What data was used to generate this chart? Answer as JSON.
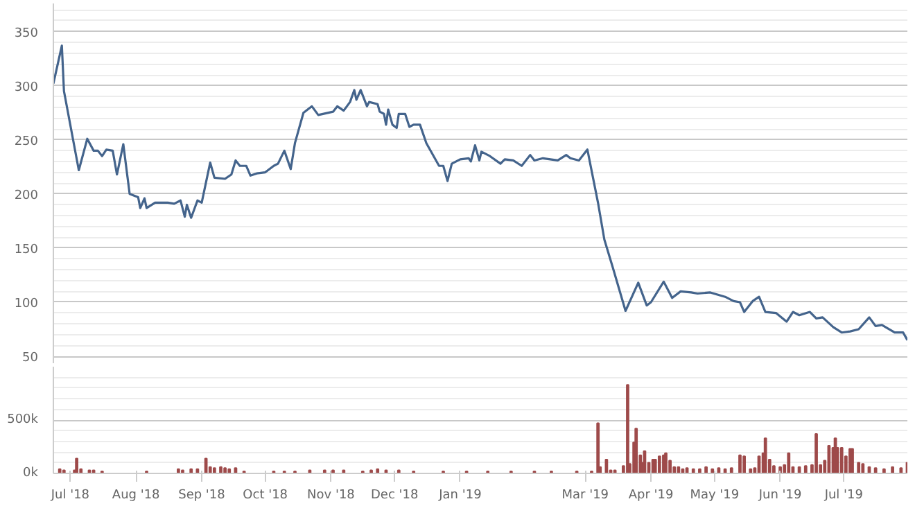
{
  "chart_data": [
    {
      "type": "line",
      "color": "#44648c",
      "grid": "y",
      "tick_labels": "y",
      "xlim": [
        "2018-06-23",
        "2019-07-31"
      ],
      "ylim": [
        43,
        376
      ],
      "yticks": [
        50,
        100,
        150,
        200,
        250,
        300,
        350
      ],
      "x": [
        "2018-06-23",
        "2018-06-27",
        "2018-06-28",
        "2018-07-05",
        "2018-07-09",
        "2018-07-12",
        "2018-07-14",
        "2018-07-16",
        "2018-07-18",
        "2018-07-21",
        "2018-07-23",
        "2018-07-26",
        "2018-07-29",
        "2018-08-02",
        "2018-08-03",
        "2018-08-05",
        "2018-08-06",
        "2018-08-10",
        "2018-08-16",
        "2018-08-19",
        "2018-08-22",
        "2018-08-24",
        "2018-08-25",
        "2018-08-27",
        "2018-08-30",
        "2018-09-01",
        "2018-09-05",
        "2018-09-07",
        "2018-09-12",
        "2018-09-15",
        "2018-09-17",
        "2018-09-19",
        "2018-09-22",
        "2018-09-24",
        "2018-09-27",
        "2018-10-01",
        "2018-10-05",
        "2018-10-07",
        "2018-10-10",
        "2018-10-13",
        "2018-10-15",
        "2018-10-19",
        "2018-10-23",
        "2018-10-26",
        "2018-11-02",
        "2018-11-04",
        "2018-11-07",
        "2018-11-10",
        "2018-11-12",
        "2018-11-13",
        "2018-11-15",
        "2018-11-18",
        "2018-11-19",
        "2018-11-23",
        "2018-11-24",
        "2018-11-26",
        "2018-11-27",
        "2018-11-28",
        "2018-11-30",
        "2018-12-02",
        "2018-12-03",
        "2018-12-06",
        "2018-12-08",
        "2018-12-10",
        "2018-12-13",
        "2018-12-16",
        "2018-12-22",
        "2018-12-24",
        "2018-12-26",
        "2018-12-28",
        "2019-01-01",
        "2019-01-05",
        "2019-01-06",
        "2019-01-08",
        "2019-01-10",
        "2019-01-11",
        "2019-01-15",
        "2019-01-20",
        "2019-01-22",
        "2019-01-26",
        "2019-01-30",
        "2019-02-03",
        "2019-02-05",
        "2019-02-09",
        "2019-02-16",
        "2019-02-20",
        "2019-02-22",
        "2019-02-26",
        "2019-03-02",
        "2019-03-07",
        "2019-03-10",
        "2019-03-14",
        "2019-03-20",
        "2019-03-26",
        "2019-03-30",
        "2019-04-01",
        "2019-04-07",
        "2019-04-11",
        "2019-04-15",
        "2019-04-20",
        "2019-04-23",
        "2019-04-29",
        "2019-05-06",
        "2019-05-10",
        "2019-05-13",
        "2019-05-15",
        "2019-05-19",
        "2019-05-22",
        "2019-05-25",
        "2019-05-30",
        "2019-06-04",
        "2019-06-07",
        "2019-06-10",
        "2019-06-15",
        "2019-06-18",
        "2019-06-21",
        "2019-06-26",
        "2019-06-30",
        "2019-07-04",
        "2019-07-08",
        "2019-07-13",
        "2019-07-16",
        "2019-07-19",
        "2019-07-25",
        "2019-07-29",
        "2019-07-31"
      ],
      "values": [
        302,
        337,
        295,
        222,
        251,
        240,
        240,
        235,
        241,
        240,
        218,
        246,
        200,
        197,
        187,
        196,
        187,
        192,
        192,
        191,
        194,
        179,
        190,
        178,
        194,
        192,
        229,
        215,
        214,
        218,
        231,
        226,
        226,
        217,
        219,
        220,
        226,
        228,
        240,
        223,
        247,
        275,
        281,
        273,
        276,
        281,
        277,
        285,
        296,
        287,
        296,
        281,
        285,
        283,
        276,
        274,
        264,
        278,
        264,
        261,
        274,
        274,
        262,
        264,
        264,
        247,
        226,
        226,
        212,
        228,
        232,
        233,
        230,
        245,
        231,
        239,
        235,
        228,
        232,
        231,
        226,
        236,
        231,
        233,
        231,
        236,
        233,
        231,
        241,
        192,
        158,
        132,
        92,
        118,
        97,
        100,
        119,
        104,
        110,
        109,
        108,
        109,
        105,
        101,
        100,
        91,
        101,
        105,
        91,
        90,
        82,
        91,
        88,
        91,
        85,
        86,
        77,
        72,
        73,
        75,
        86,
        78,
        79,
        72,
        72,
        65
      ]
    },
    {
      "type": "bar",
      "color": "#9e4a4a",
      "grid": "y",
      "xlim": [
        "2018-06-23",
        "2019-07-31"
      ],
      "ylim": [
        0,
        1000000
      ],
      "yticks": [
        {
          "value": 0,
          "label": "0k"
        },
        {
          "value": 500000,
          "label": "500k"
        }
      ],
      "xticks": [
        {
          "value": "2018-07-01",
          "label": "Jul '18"
        },
        {
          "value": "2018-08-01",
          "label": "Aug '18"
        },
        {
          "value": "2018-09-01",
          "label": "Sep '18"
        },
        {
          "value": "2018-10-01",
          "label": "Oct '18"
        },
        {
          "value": "2018-11-01",
          "label": "Nov '18"
        },
        {
          "value": "2018-12-01",
          "label": "Dec '18"
        },
        {
          "value": "2019-01-01",
          "label": "Jan '19"
        },
        {
          "value": "2019-03-01",
          "label": "Mar '19"
        },
        {
          "value": "2019-04-01",
          "label": "Apr '19"
        },
        {
          "value": "2019-05-01",
          "label": "May '19"
        },
        {
          "value": "2019-06-01",
          "label": "Jun '19"
        },
        {
          "value": "2019-07-01",
          "label": "Jul '19"
        }
      ],
      "x": [
        "2018-06-26",
        "2018-06-28",
        "2018-07-03",
        "2018-07-04",
        "2018-07-06",
        "2018-07-10",
        "2018-07-12",
        "2018-07-16",
        "2018-08-06",
        "2018-08-21",
        "2018-08-23",
        "2018-08-27",
        "2018-08-30",
        "2018-09-03",
        "2018-09-05",
        "2018-09-07",
        "2018-09-10",
        "2018-09-12",
        "2018-09-14",
        "2018-09-17",
        "2018-09-21",
        "2018-10-05",
        "2018-10-10",
        "2018-10-15",
        "2018-10-22",
        "2018-10-29",
        "2018-11-02",
        "2018-11-07",
        "2018-11-16",
        "2018-11-20",
        "2018-11-23",
        "2018-11-27",
        "2018-12-03",
        "2018-12-10",
        "2018-12-24",
        "2019-01-04",
        "2019-01-14",
        "2019-01-25",
        "2019-02-05",
        "2019-02-13",
        "2019-02-25",
        "2019-03-04",
        "2019-03-07",
        "2019-03-08",
        "2019-03-11",
        "2019-03-13",
        "2019-03-15",
        "2019-03-19",
        "2019-03-21",
        "2019-03-22",
        "2019-03-24",
        "2019-03-25",
        "2019-03-27",
        "2019-03-28",
        "2019-03-29",
        "2019-03-31",
        "2019-04-02",
        "2019-04-03",
        "2019-04-05",
        "2019-04-07",
        "2019-04-08",
        "2019-04-10",
        "2019-04-12",
        "2019-04-14",
        "2019-04-16",
        "2019-04-18",
        "2019-04-21",
        "2019-04-24",
        "2019-04-27",
        "2019-04-30",
        "2019-05-03",
        "2019-05-06",
        "2019-05-09",
        "2019-05-13",
        "2019-05-15",
        "2019-05-18",
        "2019-05-20",
        "2019-05-22",
        "2019-05-24",
        "2019-05-25",
        "2019-05-27",
        "2019-05-29",
        "2019-06-01",
        "2019-06-03",
        "2019-06-05",
        "2019-06-07",
        "2019-06-10",
        "2019-06-13",
        "2019-06-16",
        "2019-06-18",
        "2019-06-20",
        "2019-06-22",
        "2019-06-24",
        "2019-06-26",
        "2019-06-27",
        "2019-06-28",
        "2019-06-30",
        "2019-07-02",
        "2019-07-04",
        "2019-07-05",
        "2019-07-08",
        "2019-07-10",
        "2019-07-13",
        "2019-07-16",
        "2019-07-20",
        "2019-07-24",
        "2019-07-28",
        "2019-07-31"
      ],
      "values": [
        40000,
        30000,
        30000,
        140000,
        40000,
        30000,
        30000,
        20000,
        20000,
        40000,
        30000,
        40000,
        40000,
        140000,
        60000,
        50000,
        60000,
        50000,
        40000,
        50000,
        20000,
        20000,
        20000,
        20000,
        30000,
        30000,
        30000,
        30000,
        20000,
        30000,
        40000,
        30000,
        30000,
        20000,
        20000,
        20000,
        20000,
        20000,
        20000,
        20000,
        20000,
        20000,
        470000,
        60000,
        130000,
        30000,
        30000,
        70000,
        830000,
        90000,
        290000,
        420000,
        170000,
        100000,
        210000,
        100000,
        130000,
        130000,
        160000,
        170000,
        190000,
        120000,
        60000,
        60000,
        40000,
        50000,
        40000,
        40000,
        60000,
        40000,
        50000,
        40000,
        50000,
        170000,
        160000,
        40000,
        50000,
        160000,
        190000,
        330000,
        130000,
        70000,
        60000,
        80000,
        190000,
        60000,
        60000,
        70000,
        80000,
        370000,
        80000,
        120000,
        260000,
        240000,
        330000,
        240000,
        240000,
        160000,
        230000,
        230000,
        100000,
        90000,
        60000,
        50000,
        40000,
        60000,
        50000,
        100000
      ]
    }
  ]
}
